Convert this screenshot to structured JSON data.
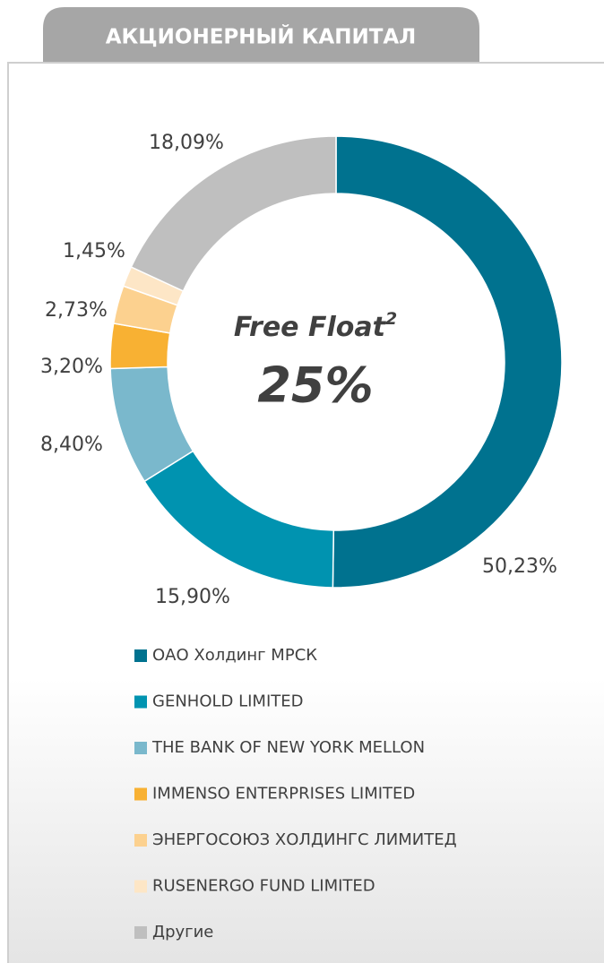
{
  "chart_data": {
    "type": "donut",
    "title": "АКЦИОНЕРНЫЙ КАПИТАЛ",
    "center_title": "Free Float",
    "center_title_sup": "2",
    "center_value": "25%",
    "categories": [
      "ОАО Холдинг МРСК",
      "GENHOLD LIMITED",
      "THE BANK OF NEW YORK MELLON",
      "IMMENSO ENTERPRISES LIMITED",
      "ЭНЕРГОСОЮЗ ХОЛДИНГС ЛИМИТЕД",
      "RUSENERGO FUND LIMITED",
      "Другие"
    ],
    "values": [
      50.23,
      15.9,
      8.4,
      3.2,
      2.73,
      1.45,
      18.09
    ],
    "value_labels": [
      "50,23%",
      "15,90%",
      "8,40%",
      "3,20%",
      "2,73%",
      "1,45%",
      "18,09%"
    ],
    "colors": [
      "#00728f",
      "#0093b0",
      "#7ab8cc",
      "#f8b133",
      "#fcd18f",
      "#fde6c6",
      "#bfbfbf"
    ]
  }
}
